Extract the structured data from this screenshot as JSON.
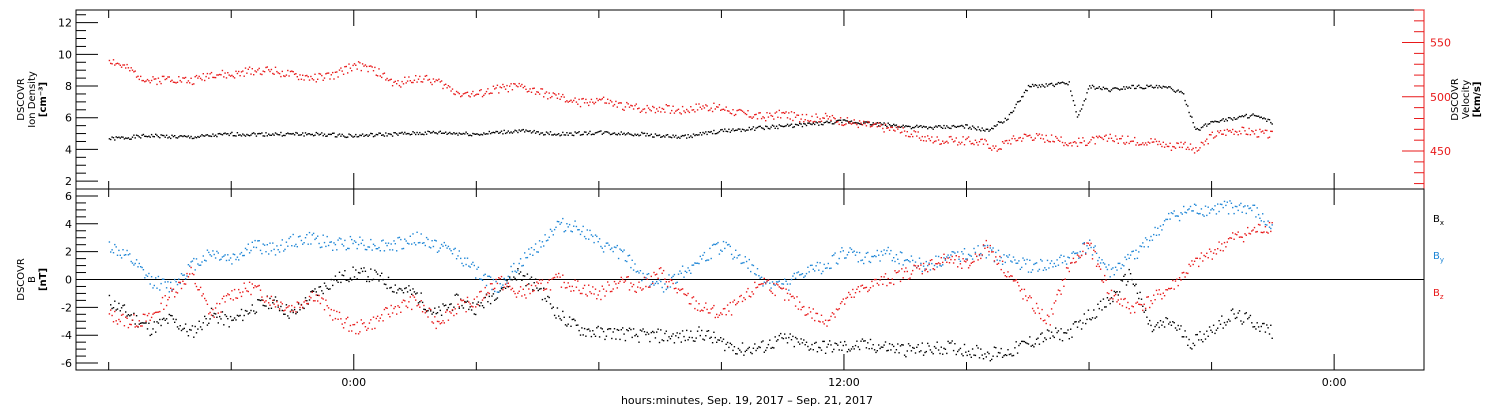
{
  "chart_data": [
    {
      "type": "scatter",
      "panel": "top",
      "left_axis": {
        "label_lines": [
          "DSCOVR",
          "Ion Density",
          "[cm⁻³]"
        ],
        "ylim": [
          1.5,
          12.8
        ],
        "ticks": [
          2,
          4,
          6,
          8,
          10,
          12
        ],
        "color": "#000000"
      },
      "right_axis": {
        "label_lines": [
          "DSCOVR",
          "Velocity",
          "[km/s]"
        ],
        "ylim": [
          415,
          580
        ],
        "ticks": [
          450,
          500,
          550
        ],
        "color": "#e8191a"
      },
      "series": [
        {
          "color": "#000000",
          "axis": "left",
          "x": [
            -6,
            -5,
            -4,
            -3,
            -2,
            -1,
            0,
            1,
            2,
            3,
            4,
            5,
            6,
            7,
            8,
            9,
            10,
            11,
            12,
            13,
            14,
            15,
            15.5,
            15.7,
            16,
            16.5,
            17,
            17.5,
            17.7,
            18,
            18.5,
            19,
            19.5,
            20,
            20.3,
            20.6,
            21,
            21.5,
            22,
            22.5
          ],
          "y": [
            4.7,
            4.9,
            4.8,
            5.0,
            5.0,
            5.0,
            4.9,
            5.0,
            5.1,
            5.0,
            5.2,
            5.0,
            5.1,
            5.0,
            4.8,
            5.2,
            5.4,
            5.6,
            5.8,
            5.6,
            5.4,
            5.5,
            5.2,
            5.6,
            6.0,
            8.0,
            8.1,
            8.2,
            6.0,
            8.0,
            7.8,
            8.0,
            8.0,
            7.9,
            7.5,
            5.2,
            5.8,
            6.0,
            6.2,
            5.7
          ]
        },
        {
          "color": "#e8191a",
          "axis": "right",
          "x": [
            -6,
            -5.5,
            -5,
            -4.5,
            -4,
            -3.5,
            -3,
            -2.5,
            -2,
            -1.5,
            -1,
            -0.5,
            0,
            0.5,
            1,
            1.5,
            2,
            2.5,
            3,
            3.5,
            4,
            4.5,
            5,
            5.5,
            6,
            6.5,
            7,
            7.5,
            8,
            8.5,
            9,
            9.5,
            10,
            10.5,
            11,
            11.5,
            12,
            12.5,
            13,
            13.5,
            14,
            14.5,
            15,
            15.5,
            15.7,
            16,
            16.5,
            17,
            17.5,
            18,
            18.5,
            19,
            19.5,
            20,
            20.3,
            20.6,
            21,
            21.5,
            22,
            22.5
          ],
          "y": [
            535,
            525,
            515,
            518,
            515,
            522,
            520,
            525,
            525,
            520,
            518,
            520,
            530,
            525,
            512,
            518,
            515,
            505,
            502,
            508,
            510,
            505,
            500,
            495,
            498,
            492,
            490,
            490,
            488,
            492,
            490,
            485,
            482,
            485,
            480,
            482,
            478,
            475,
            472,
            468,
            462,
            460,
            460,
            458,
            452,
            460,
            465,
            462,
            458,
            460,
            462,
            460,
            460,
            455,
            458,
            450,
            465,
            470,
            468,
            465
          ]
        }
      ]
    },
    {
      "type": "scatter",
      "panel": "bottom",
      "left_axis": {
        "label_lines": [
          "DSCOVR",
          "B",
          "[nT]"
        ],
        "ylim": [
          -6.5,
          6.5
        ],
        "ticks": [
          -6,
          -4,
          -2,
          0,
          2,
          4,
          6
        ],
        "color": "#000000"
      },
      "zero_line": true,
      "legend": [
        "B",
        "B",
        "B"
      ],
      "legend_subs": [
        "x",
        "y",
        "z"
      ],
      "series": [
        {
          "name": "Bx",
          "color": "#000000",
          "x": [
            -6,
            -5.5,
            -5,
            -4.5,
            -4,
            -3.5,
            -3,
            -2.5,
            -2,
            -1.5,
            -1,
            -0.5,
            0,
            0.5,
            1,
            1.5,
            2,
            2.5,
            3,
            3.5,
            4,
            4.5,
            5,
            5.5,
            6,
            6.5,
            7,
            7.5,
            8,
            8.5,
            9,
            9.5,
            10,
            10.5,
            11,
            11.5,
            12,
            12.5,
            13,
            13.5,
            14,
            14.5,
            15,
            15.5,
            16,
            16.5,
            17,
            17.5,
            18,
            18.5,
            19,
            19.5,
            20,
            20.5,
            21,
            21.5,
            22,
            22.5
          ],
          "y": [
            -1.5,
            -2.5,
            -3.5,
            -2.8,
            -3.8,
            -2.5,
            -3.0,
            -2.0,
            -1.5,
            -2.5,
            -1.0,
            0.0,
            0.5,
            0.3,
            -0.5,
            -1.0,
            -2.5,
            -1.5,
            -2.0,
            -0.8,
            0.5,
            -0.5,
            -2.5,
            -3.5,
            -3.8,
            -3.8,
            -4.0,
            -4.0,
            -4.1,
            -3.8,
            -4.5,
            -5.0,
            -4.8,
            -4.2,
            -4.6,
            -4.8,
            -4.8,
            -4.7,
            -4.8,
            -5.0,
            -5.0,
            -4.8,
            -5.0,
            -5.3,
            -5.2,
            -4.5,
            -4.0,
            -3.8,
            -2.5,
            -1.5,
            0.5,
            -3.5,
            -3.0,
            -4.5,
            -3.5,
            -2.5,
            -3.0,
            -3.8
          ]
        },
        {
          "name": "By",
          "color": "#1e86d6",
          "x": [
            -6,
            -5.5,
            -5,
            -4.5,
            -4,
            -3.5,
            -3,
            -2.5,
            -2,
            -1.5,
            -1,
            -0.5,
            0,
            0.5,
            1,
            1.5,
            2,
            2.5,
            3,
            3.5,
            4,
            4.5,
            5,
            5.5,
            6,
            6.5,
            7,
            7.5,
            8,
            8.5,
            9,
            9.5,
            10,
            10.5,
            11,
            11.5,
            12,
            12.5,
            13,
            13.5,
            14,
            14.5,
            15,
            15.5,
            16,
            16.5,
            17,
            17.5,
            18,
            18.5,
            19,
            19.5,
            20,
            20.5,
            21,
            21.5,
            22,
            22.5
          ],
          "y": [
            2.5,
            1.5,
            0.0,
            -0.5,
            1.0,
            2.0,
            1.5,
            2.5,
            2.2,
            2.8,
            3.0,
            2.5,
            2.8,
            2.5,
            2.5,
            3.0,
            2.5,
            2.0,
            0.5,
            -0.5,
            1.0,
            2.5,
            4.0,
            3.8,
            2.5,
            2.0,
            0.5,
            -0.5,
            0.5,
            1.5,
            2.5,
            1.5,
            0.0,
            -0.5,
            0.5,
            1.0,
            2.0,
            1.5,
            2.0,
            1.5,
            1.0,
            1.5,
            2.0,
            2.0,
            1.5,
            1.0,
            1.0,
            1.5,
            2.5,
            0.5,
            1.5,
            3.0,
            4.5,
            5.0,
            5.0,
            5.3,
            5.0,
            3.5
          ]
        },
        {
          "name": "Bz",
          "color": "#e8191a",
          "x": [
            -6,
            -5.5,
            -5,
            -4.5,
            -4,
            -3.5,
            -3,
            -2.5,
            -2,
            -1.5,
            -1,
            -0.5,
            0,
            0.5,
            1,
            1.5,
            2,
            2.5,
            3,
            3.5,
            4,
            4.5,
            5,
            5.5,
            6,
            6.5,
            7,
            7.5,
            8,
            8.5,
            9,
            9.5,
            10,
            10.5,
            11,
            11.5,
            12,
            12.5,
            13,
            13.5,
            14,
            14.5,
            15,
            15.5,
            16,
            16.5,
            17,
            17.5,
            18,
            18.5,
            19,
            19.5,
            20,
            20.5,
            21,
            21.5,
            22,
            22.5
          ],
          "y": [
            -2.5,
            -3.0,
            -2.8,
            -1.0,
            0.5,
            -2.5,
            -1.0,
            -0.5,
            -1.5,
            -2.0,
            -1.0,
            -2.5,
            -3.5,
            -3.0,
            -2.0,
            -1.5,
            -3.0,
            -2.0,
            -1.5,
            0.0,
            -1.0,
            -0.5,
            0.0,
            -0.5,
            -1.0,
            0.0,
            -0.5,
            0.5,
            -1.0,
            -2.0,
            -2.5,
            -1.5,
            0.0,
            -1.0,
            -2.0,
            -3.0,
            -1.5,
            -0.5,
            0.0,
            0.5,
            1.0,
            1.5,
            1.0,
            2.5,
            0.5,
            -1.5,
            -3.0,
            1.0,
            2.5,
            -1.0,
            -2.0,
            -1.5,
            -0.5,
            1.0,
            2.0,
            3.0,
            3.5,
            4.0
          ]
        }
      ]
    }
  ],
  "x_axis": {
    "xlim": [
      -6.8,
      26.2
    ],
    "major_ticks": [
      0,
      12,
      24
    ],
    "labels": [
      "0:00",
      "12:00",
      "0:00"
    ],
    "label": "hours:minutes, Sep. 19, 2017 – Sep. 21, 2017"
  }
}
